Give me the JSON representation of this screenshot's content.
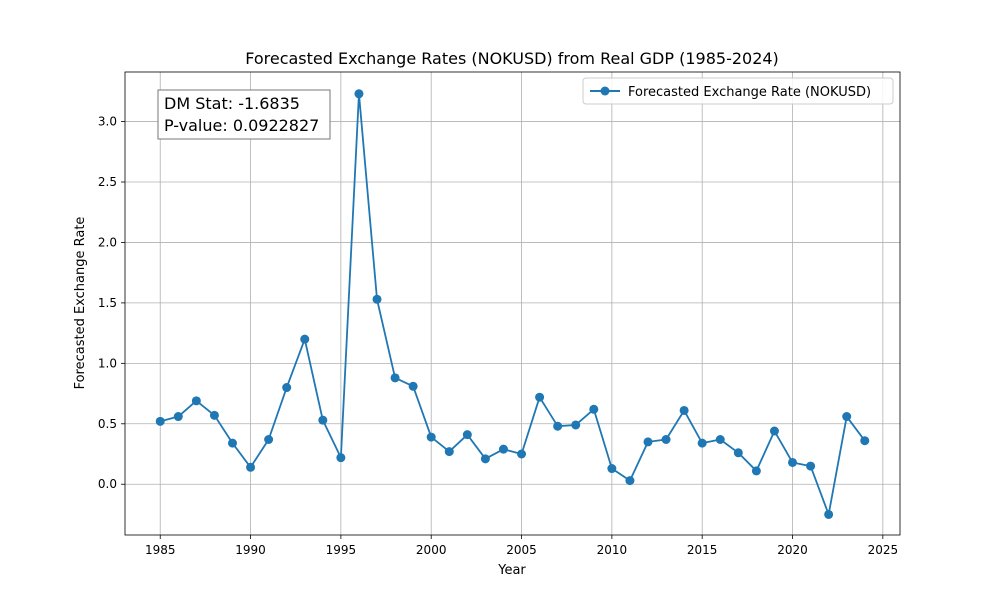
{
  "chart_data": {
    "type": "line",
    "title": "Forecasted Exchange Rates (NOKUSD) from Real GDP (1985-2024)",
    "xlabel": "Year",
    "ylabel": "Forecasted Exchange Rate",
    "xlim": [
      1983.05,
      2025.95
    ],
    "ylim": [
      -0.42,
      3.41
    ],
    "xticks": [
      1985,
      1990,
      1995,
      2000,
      2005,
      2010,
      2015,
      2020,
      2025
    ],
    "xtick_labels": [
      "1985",
      "1990",
      "1995",
      "2000",
      "2005",
      "2010",
      "2015",
      "2020",
      "2025"
    ],
    "yticks": [
      0.0,
      0.5,
      1.0,
      1.5,
      2.0,
      2.5,
      3.0
    ],
    "ytick_labels": [
      "0.0",
      "0.5",
      "1.0",
      "1.5",
      "2.0",
      "2.5",
      "3.0"
    ],
    "grid": true,
    "legend_position": "upper-right",
    "annotation": {
      "line1": "DM Stat: -1.6835",
      "line2": "P-value: 0.0922827",
      "position": "upper-left"
    },
    "series": [
      {
        "name": "Forecasted Exchange Rate (NOKUSD)",
        "color": "#1f77b4",
        "marker": "circle",
        "x": [
          1985,
          1986,
          1987,
          1988,
          1989,
          1990,
          1991,
          1992,
          1993,
          1994,
          1995,
          1996,
          1997,
          1998,
          1999,
          2000,
          2001,
          2002,
          2003,
          2004,
          2005,
          2006,
          2007,
          2008,
          2009,
          2010,
          2011,
          2012,
          2013,
          2014,
          2015,
          2016,
          2017,
          2018,
          2019,
          2020,
          2021,
          2022,
          2023,
          2024
        ],
        "y": [
          0.52,
          0.56,
          0.69,
          0.57,
          0.34,
          0.14,
          0.37,
          0.8,
          1.2,
          0.53,
          0.22,
          3.23,
          1.53,
          0.88,
          0.81,
          0.39,
          0.27,
          0.41,
          0.21,
          0.29,
          0.25,
          0.72,
          0.48,
          0.49,
          0.62,
          0.13,
          0.03,
          0.35,
          0.37,
          0.61,
          0.34,
          0.37,
          0.26,
          0.11,
          0.44,
          0.18,
          0.15,
          -0.25,
          0.56,
          0.36
        ]
      }
    ]
  }
}
